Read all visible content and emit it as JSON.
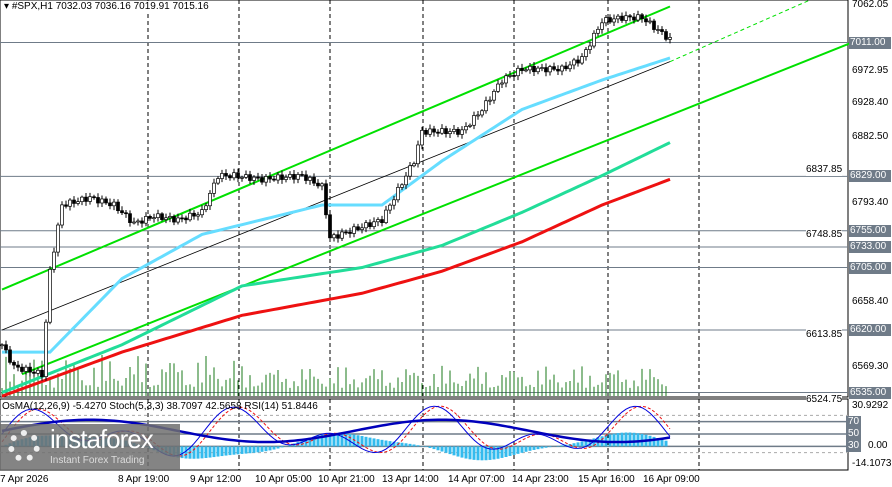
{
  "header": {
    "symbol": "#SPX,H1",
    "ohlc": "7032.03 7036.16 7019.91 7015.16"
  },
  "indicator": {
    "title": "OsMA(12,26,9) -5.4270  Stoch(5,3,3) 38.7097 42.5658  RSI(14) 51.8446",
    "scale_max": "30.9292",
    "scale_min": "-14.1073",
    "levels": [
      "70",
      "50",
      "30"
    ],
    "zero_label": "0.00"
  },
  "price_axis": {
    "ticks": [
      "7062.05",
      "6972.95",
      "6928.40",
      "6882.50",
      "6837.85",
      "6793.40",
      "6748.85",
      "6658.40",
      "6613.85",
      "6569.30",
      "6524.75"
    ],
    "levels": [
      "7011.00",
      "6829.00",
      "6755.00",
      "6733.00",
      "6705.00",
      "6620.00",
      "6535.00"
    ]
  },
  "time_axis": [
    "7 Apr 2026",
    "8 Apr 19:00",
    "9 Apr 12:00",
    "10 Apr 05:00",
    "10 Apr 21:00",
    "13 Apr 14:00",
    "14 Apr 07:00",
    "14 Apr 23:00",
    "15 Apr 16:00",
    "16 Apr 09:00"
  ],
  "logo": {
    "brand": "instaforex",
    "tagline": "Instant Forex Trading"
  },
  "colors": {
    "channel": "#00e000",
    "ma_fast": "#66ddff",
    "ma_mid": "#22dd99",
    "ma_slow": "#ee1111",
    "level_tag": "#6f7b88",
    "volume": "#1a7a1a",
    "osma": "#33bbee",
    "stoch_main": "#0000dd",
    "stoch_signal": "#ee1111",
    "rsi": "#0000bb"
  },
  "chart_data": {
    "type": "candlestick",
    "timeframe": "H1",
    "ylim": [
      6524.75,
      7062.05
    ],
    "close_anchors": [
      [
        0,
        6600
      ],
      [
        3,
        6570
      ],
      [
        10,
        6560
      ],
      [
        12,
        6700
      ],
      [
        15,
        6790
      ],
      [
        22,
        6800
      ],
      [
        28,
        6790
      ],
      [
        30,
        6780
      ],
      [
        33,
        6765
      ],
      [
        38,
        6775
      ],
      [
        44,
        6770
      ],
      [
        50,
        6780
      ],
      [
        54,
        6830
      ],
      [
        58,
        6830
      ],
      [
        65,
        6825
      ],
      [
        75,
        6830
      ],
      [
        80,
        6815
      ],
      [
        82,
        6745
      ],
      [
        95,
        6770
      ],
      [
        98,
        6800
      ],
      [
        103,
        6850
      ],
      [
        105,
        6890
      ],
      [
        115,
        6890
      ],
      [
        120,
        6920
      ],
      [
        125,
        6960
      ],
      [
        130,
        6975
      ],
      [
        140,
        6975
      ],
      [
        145,
        6990
      ],
      [
        150,
        7040
      ],
      [
        155,
        7045
      ],
      [
        160,
        7045
      ],
      [
        167,
        7015
      ]
    ],
    "ma_fast": [
      [
        0,
        6590
      ],
      [
        12,
        6590
      ],
      [
        30,
        6690
      ],
      [
        50,
        6750
      ],
      [
        80,
        6790
      ],
      [
        95,
        6790
      ],
      [
        110,
        6850
      ],
      [
        130,
        6920
      ],
      [
        150,
        6960
      ],
      [
        167,
        6990
      ]
    ],
    "ma_mid": [
      [
        0,
        6535
      ],
      [
        30,
        6600
      ],
      [
        60,
        6680
      ],
      [
        90,
        6705
      ],
      [
        110,
        6735
      ],
      [
        130,
        6780
      ],
      [
        150,
        6830
      ],
      [
        167,
        6875
      ]
    ],
    "ma_slow": [
      [
        0,
        6530
      ],
      [
        30,
        6590
      ],
      [
        60,
        6640
      ],
      [
        90,
        6670
      ],
      [
        110,
        6700
      ],
      [
        130,
        6740
      ],
      [
        150,
        6790
      ],
      [
        167,
        6825
      ]
    ],
    "channel_upper": [
      [
        0,
        6675
      ],
      [
        167,
        7060
      ]
    ],
    "channel_mid": [
      [
        0,
        6620
      ],
      [
        167,
        6985
      ]
    ],
    "channel_lower": [
      [
        5,
        6560
      ],
      [
        212,
        7010
      ]
    ]
  }
}
